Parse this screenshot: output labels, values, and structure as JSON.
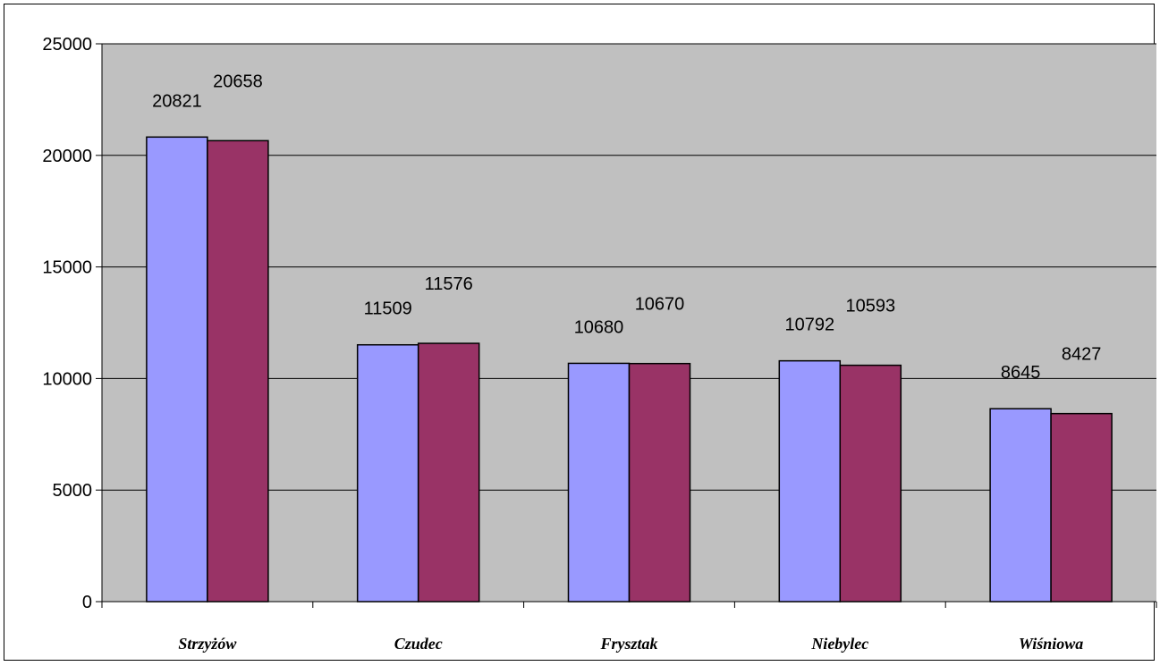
{
  "chart_data": {
    "type": "bar",
    "categories": [
      "Strzyżów",
      "Czudec",
      "Frysztak",
      "Niebylec",
      "Wiśniowa"
    ],
    "series": [
      {
        "values": [
          20821,
          11509,
          10680,
          10792,
          8645
        ],
        "color": "#9999ff"
      },
      {
        "values": [
          20658,
          11576,
          10670,
          10593,
          8427
        ],
        "color": "#993366"
      }
    ],
    "y_ticks": [
      "0",
      "5000",
      "10000",
      "15000",
      "20000",
      "25000"
    ],
    "ylim": [
      0,
      25000
    ],
    "grid": true,
    "legend": "none",
    "title": "",
    "xlabel": "",
    "ylabel": "",
    "plot_background": "#c0c0c0"
  }
}
